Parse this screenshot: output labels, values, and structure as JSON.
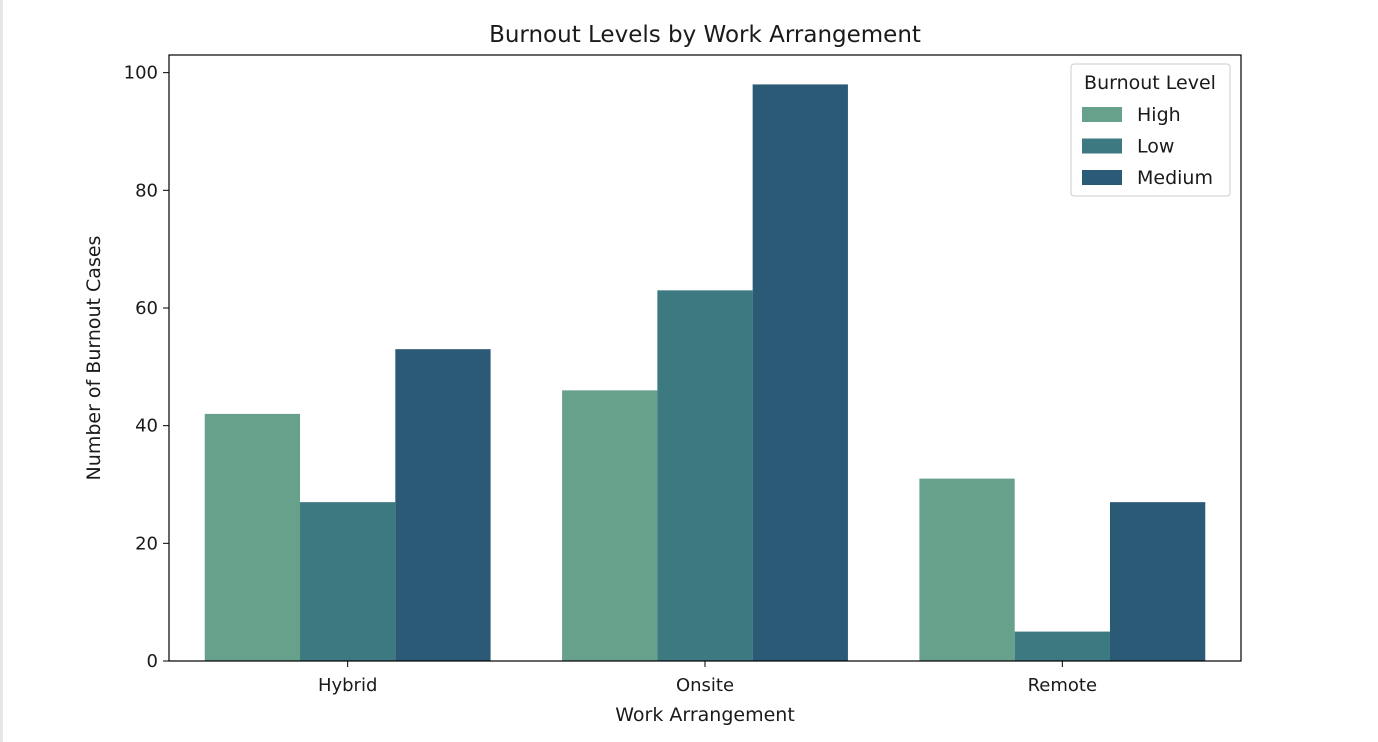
{
  "chart_data": {
    "type": "bar",
    "title": "Burnout Levels by Work Arrangement",
    "xlabel": "Work Arrangement",
    "ylabel": "Number of Burnout Cases",
    "categories": [
      "Hybrid",
      "Onsite",
      "Remote"
    ],
    "series": [
      {
        "name": "High",
        "values": [
          42,
          46,
          31
        ],
        "color": "#68a18b"
      },
      {
        "name": "Low",
        "values": [
          27,
          63,
          5
        ],
        "color": "#3d7980"
      },
      {
        "name": "Medium",
        "values": [
          53,
          98,
          27
        ],
        "color": "#2b5a77"
      }
    ],
    "ylim": [
      0,
      103
    ],
    "yticks": [
      0,
      20,
      40,
      60,
      80,
      100
    ],
    "legend": {
      "title": "Burnout Level",
      "position": "top-right"
    },
    "grid": false
  }
}
